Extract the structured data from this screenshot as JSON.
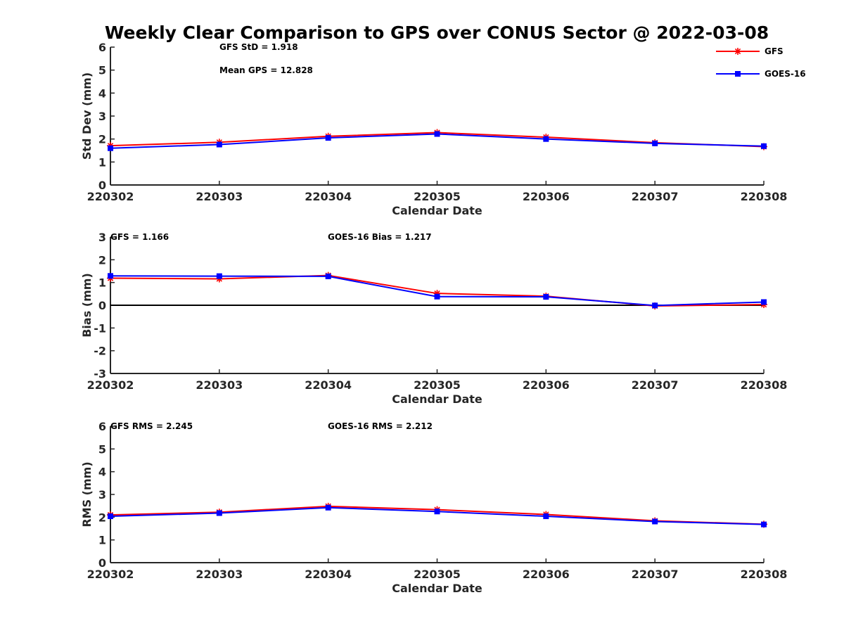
{
  "title": "Weekly Clear Comparison to GPS over CONUS Sector @ 2022-03-08",
  "legend": [
    {
      "name": "GFS",
      "color": "#ff0000",
      "marker": "asterisk"
    },
    {
      "name": "GOES-16",
      "color": "#0000ff",
      "marker": "square"
    }
  ],
  "chart_data": [
    {
      "type": "line",
      "id": "std",
      "categories": [
        "220302",
        "220303",
        "220304",
        "220305",
        "220306",
        "220307",
        "220308"
      ],
      "xlabel": "Calendar Date",
      "ylabel": "Std Dev (mm)",
      "ylim": [
        0,
        6
      ],
      "yticks": [
        "0",
        "1",
        "2",
        "3",
        "4",
        "5",
        "6"
      ],
      "zero_line": false,
      "series": [
        {
          "name": "GFS",
          "color": "#ff0000",
          "marker": "asterisk",
          "values": [
            1.71,
            1.86,
            2.12,
            2.28,
            2.08,
            1.84,
            1.67
          ]
        },
        {
          "name": "GOES-16",
          "color": "#0000ff",
          "marker": "square",
          "values": [
            1.6,
            1.76,
            2.05,
            2.22,
            2.0,
            1.81,
            1.69
          ]
        }
      ],
      "annotations": [
        {
          "text": "GFS StD = 1.918",
          "row": 0,
          "col": 0
        },
        {
          "text": "Mean GPS = 12.828",
          "row": 1,
          "col": 0
        }
      ]
    },
    {
      "type": "line",
      "id": "bias",
      "categories": [
        "220302",
        "220303",
        "220304",
        "220305",
        "220306",
        "220307",
        "220308"
      ],
      "xlabel": "Calendar Date",
      "ylabel": "Bias (mm)",
      "ylim": [
        -3,
        3
      ],
      "yticks": [
        "-3",
        "-2",
        "-1",
        "0",
        "1",
        "2",
        "3"
      ],
      "zero_line": true,
      "series": [
        {
          "name": "GFS",
          "color": "#ff0000",
          "marker": "asterisk",
          "values": [
            1.19,
            1.16,
            1.31,
            0.52,
            0.4,
            -0.03,
            0.03
          ]
        },
        {
          "name": "GOES-16",
          "color": "#0000ff",
          "marker": "square",
          "values": [
            1.29,
            1.28,
            1.27,
            0.38,
            0.37,
            -0.01,
            0.14
          ]
        }
      ],
      "annotations": [
        {
          "text": "GFS = 1.166",
          "row": 0,
          "col": 0
        },
        {
          "text": "GOES-16 Bias  = 1.217",
          "row": 0,
          "col": 1
        }
      ]
    },
    {
      "type": "line",
      "id": "rms",
      "categories": [
        "220302",
        "220303",
        "220304",
        "220305",
        "220306",
        "220307",
        "220308"
      ],
      "xlabel": "Calendar Date",
      "ylabel": "RMS (mm)",
      "ylim": [
        0,
        6
      ],
      "yticks": [
        "0",
        "1",
        "2",
        "3",
        "4",
        "5",
        "6"
      ],
      "zero_line": false,
      "series": [
        {
          "name": "GFS",
          "color": "#ff0000",
          "marker": "asterisk",
          "values": [
            2.1,
            2.22,
            2.48,
            2.33,
            2.12,
            1.84,
            1.69
          ]
        },
        {
          "name": "GOES-16",
          "color": "#0000ff",
          "marker": "square",
          "values": [
            2.04,
            2.18,
            2.42,
            2.25,
            2.04,
            1.81,
            1.68
          ]
        }
      ],
      "annotations": [
        {
          "text": "GFS RMS = 2.245",
          "row": 0,
          "col": 0
        },
        {
          "text": "GOES-16 RMS = 2.212",
          "row": 0,
          "col": 1
        }
      ]
    }
  ]
}
